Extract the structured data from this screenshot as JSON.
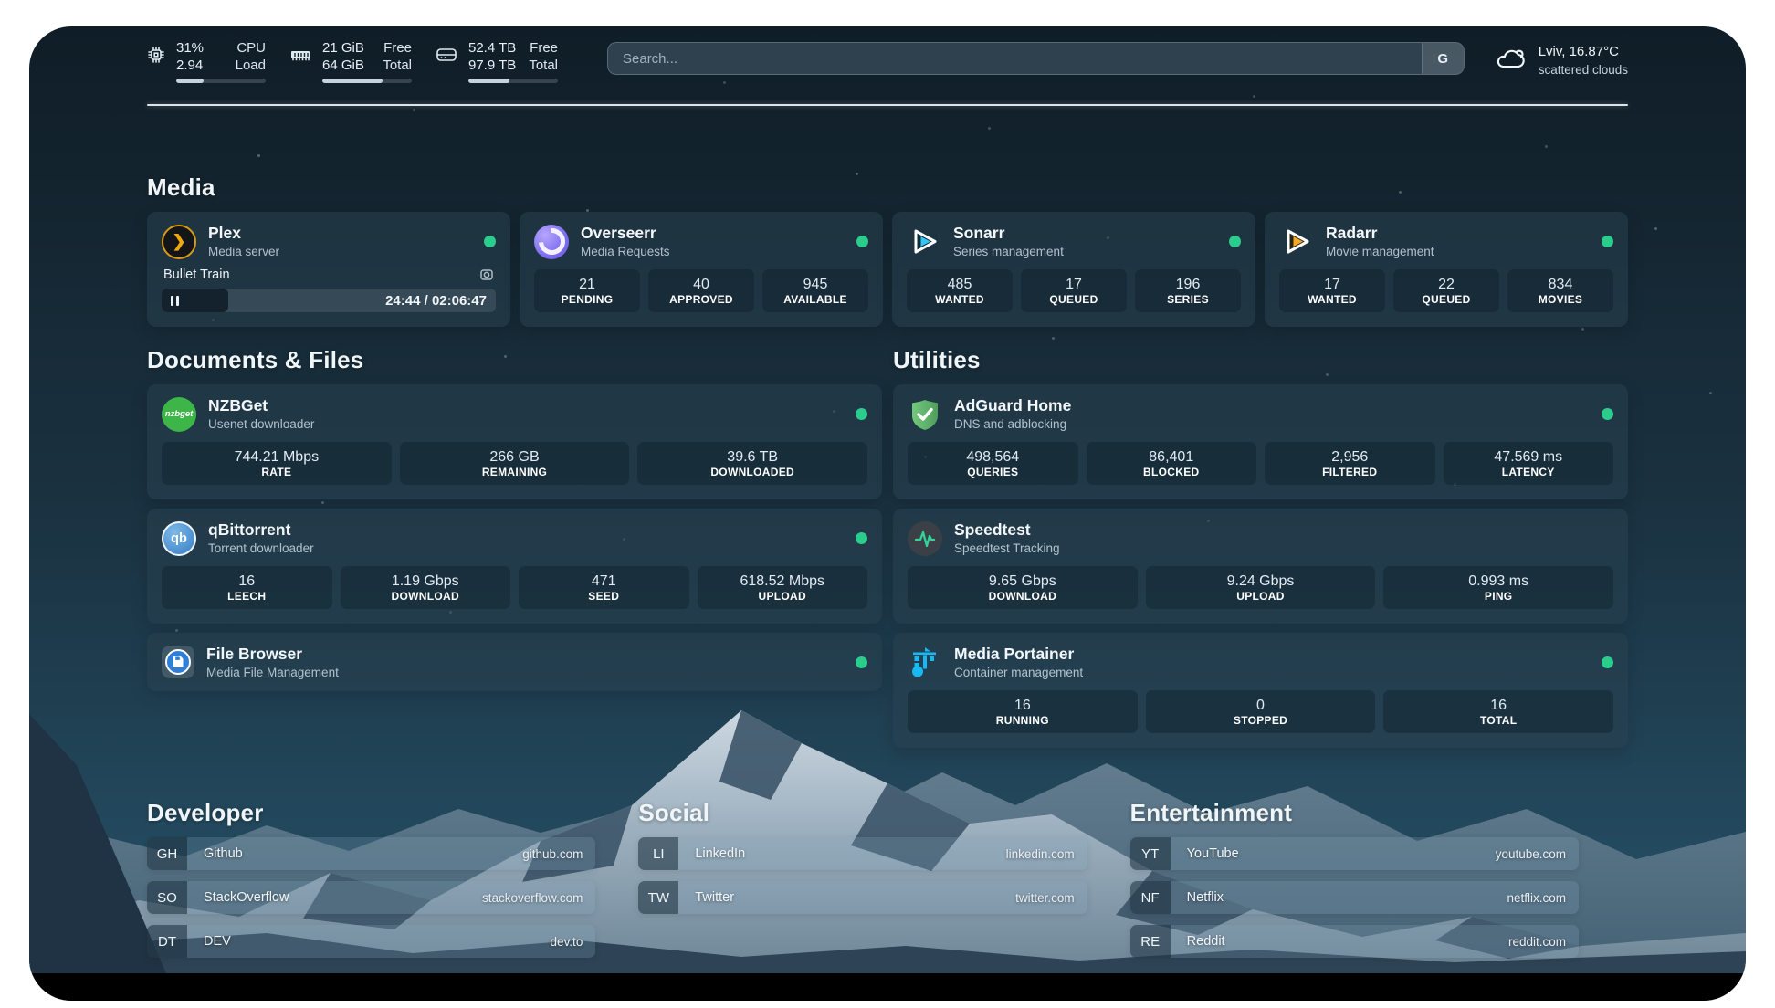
{
  "topbar": {
    "cpu": {
      "icon": "cpu-chip-icon",
      "value_top": "31%",
      "value_bottom": "2.94",
      "label_top": "CPU",
      "label_bottom": "Load",
      "progress": 31
    },
    "memory": {
      "icon": "memory-icon",
      "value_top": "21 GiB",
      "value_bottom": "64 GiB",
      "label_top": "Free",
      "label_bottom": "Total",
      "progress": 67
    },
    "disk": {
      "icon": "disk-icon",
      "value_top": "52.4 TB",
      "value_bottom": "97.9 TB",
      "label_top": "Free",
      "label_bottom": "Total",
      "progress": 46
    },
    "search": {
      "placeholder": "Search...",
      "button_label": "G"
    },
    "weather": {
      "icon": "cloud-icon",
      "location": "Lviv, 16.87°C",
      "condition": "scattered clouds"
    }
  },
  "sections": {
    "media": {
      "title": "Media",
      "plex": {
        "icon": "plex-icon",
        "title": "Plex",
        "subtitle": "Media server",
        "player": {
          "now_playing": "Bullet Train",
          "time": "24:44 / 02:06:47",
          "progress": 20
        }
      },
      "overseerr": {
        "icon": "overseerr-icon",
        "title": "Overseerr",
        "subtitle": "Media Requests",
        "stats": [
          {
            "value": "21",
            "label": "PENDING"
          },
          {
            "value": "40",
            "label": "APPROVED"
          },
          {
            "value": "945",
            "label": "AVAILABLE"
          }
        ]
      },
      "sonarr": {
        "icon": "sonarr-icon",
        "title": "Sonarr",
        "subtitle": "Series management",
        "stats": [
          {
            "value": "485",
            "label": "WANTED"
          },
          {
            "value": "17",
            "label": "QUEUED"
          },
          {
            "value": "196",
            "label": "SERIES"
          }
        ]
      },
      "radarr": {
        "icon": "radarr-icon",
        "title": "Radarr",
        "subtitle": "Movie management",
        "stats": [
          {
            "value": "17",
            "label": "WANTED"
          },
          {
            "value": "22",
            "label": "QUEUED"
          },
          {
            "value": "834",
            "label": "MOVIES"
          }
        ]
      }
    },
    "documents": {
      "title": "Documents & Files",
      "nzbget": {
        "icon": "nzbget-icon",
        "icon_text": "nzbget",
        "title": "NZBGet",
        "subtitle": "Usenet downloader",
        "stats": [
          {
            "value": "744.21 Mbps",
            "label": "RATE"
          },
          {
            "value": "266 GB",
            "label": "REMAINING"
          },
          {
            "value": "39.6 TB",
            "label": "DOWNLOADED"
          }
        ]
      },
      "qbittorrent": {
        "icon": "qbittorrent-icon",
        "icon_text": "qb",
        "title": "qBittorrent",
        "subtitle": "Torrent downloader",
        "stats": [
          {
            "value": "16",
            "label": "LEECH"
          },
          {
            "value": "1.19 Gbps",
            "label": "DOWNLOAD"
          },
          {
            "value": "471",
            "label": "SEED"
          },
          {
            "value": "618.52 Mbps",
            "label": "UPLOAD"
          }
        ]
      },
      "filebrowser": {
        "icon": "filebrowser-icon",
        "title": "File Browser",
        "subtitle": "Media File Management"
      }
    },
    "utilities": {
      "title": "Utilities",
      "adguard": {
        "icon": "adguard-shield-icon",
        "title": "AdGuard Home",
        "subtitle": "DNS and adblocking",
        "stats": [
          {
            "value": "498,564",
            "label": "QUERIES"
          },
          {
            "value": "86,401",
            "label": "BLOCKED"
          },
          {
            "value": "2,956",
            "label": "FILTERED"
          },
          {
            "value": "47.569 ms",
            "label": "LATENCY"
          }
        ]
      },
      "speedtest": {
        "icon": "speedtest-pulse-icon",
        "title": "Speedtest",
        "subtitle": "Speedtest Tracking",
        "stats": [
          {
            "value": "9.65 Gbps",
            "label": "DOWNLOAD"
          },
          {
            "value": "9.24 Gbps",
            "label": "UPLOAD"
          },
          {
            "value": "0.993 ms",
            "label": "PING"
          }
        ]
      },
      "portainer": {
        "icon": "portainer-crane-icon",
        "title": "Media Portainer",
        "subtitle": "Container management",
        "stats": [
          {
            "value": "16",
            "label": "RUNNING"
          },
          {
            "value": "0",
            "label": "STOPPED"
          },
          {
            "value": "16",
            "label": "TOTAL"
          }
        ]
      }
    },
    "developer": {
      "title": "Developer",
      "links": [
        {
          "abbr": "GH",
          "name": "Github",
          "url": "github.com"
        },
        {
          "abbr": "SO",
          "name": "StackOverflow",
          "url": "stackoverflow.com"
        },
        {
          "abbr": "DT",
          "name": "DEV",
          "url": "dev.to"
        }
      ]
    },
    "social": {
      "title": "Social",
      "links": [
        {
          "abbr": "LI",
          "name": "LinkedIn",
          "url": "linkedin.com"
        },
        {
          "abbr": "TW",
          "name": "Twitter",
          "url": "twitter.com"
        }
      ]
    },
    "entertainment": {
      "title": "Entertainment",
      "links": [
        {
          "abbr": "YT",
          "name": "YouTube",
          "url": "youtube.com"
        },
        {
          "abbr": "NF",
          "name": "Netflix",
          "url": "netflix.com"
        },
        {
          "abbr": "RE",
          "name": "Reddit",
          "url": "reddit.com"
        }
      ]
    }
  },
  "colors": {
    "status_online": "#2bcd8d",
    "plex_amber": "#e5a00d",
    "sonarr_blue": "#35c5f4",
    "radarr_amber": "#f7a824",
    "nzbget_green": "#3db549",
    "qbittorrent_blue": "#4b8fd0",
    "adguard_green": "#68bc71",
    "speedtest_green": "#34d399",
    "portainer_blue": "#13bef9",
    "filebrowser_blue": "#2f7fd6"
  }
}
